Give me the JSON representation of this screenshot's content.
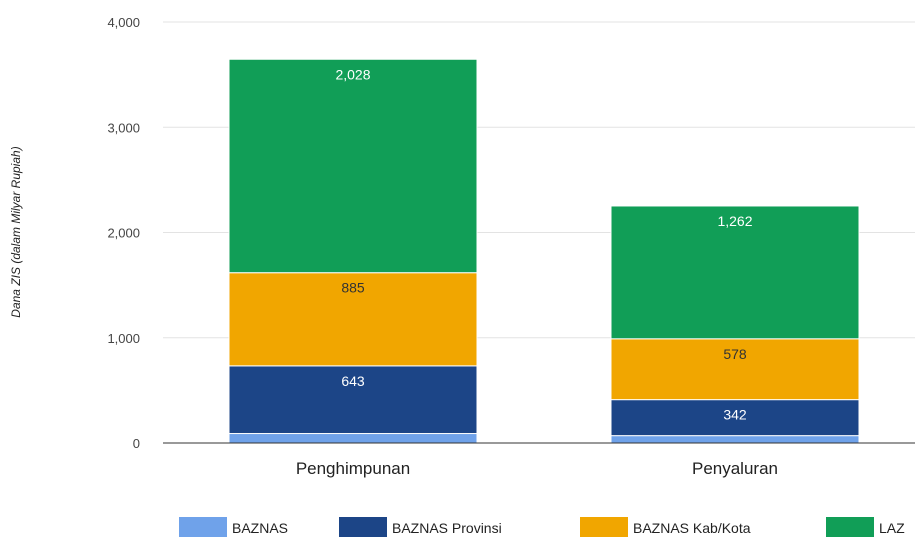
{
  "chart_data": {
    "type": "bar",
    "stacked": true,
    "ylabel": "Dana ZIS (dalam Milyar Rupiah)",
    "xlabel": "",
    "ylim": [
      0,
      4000
    ],
    "yticks": [
      0,
      1000,
      2000,
      3000,
      4000
    ],
    "ytick_labels": [
      "0",
      "1,000",
      "2,000",
      "3,000",
      "4,000"
    ],
    "grid": true,
    "legend_position": "bottom",
    "categories": [
      "Penghimpunan",
      "Penyaluran"
    ],
    "series": [
      {
        "name": "BAZNAS",
        "color": "#6fa2ea",
        "values": [
          90,
          70
        ],
        "labels": [
          "",
          ""
        ],
        "label_color": "#ffffff"
      },
      {
        "name": "BAZNAS Provinsi",
        "color": "#1c4587",
        "values": [
          643,
          342
        ],
        "labels": [
          "643",
          "342"
        ],
        "label_color": "#ffffff"
      },
      {
        "name": "BAZNAS Kab/Kota",
        "color": "#f1a600",
        "values": [
          885,
          578
        ],
        "labels": [
          "885",
          "578"
        ],
        "label_color": "#333333"
      },
      {
        "name": "LAZ",
        "color": "#119e57",
        "values": [
          2028,
          1262
        ],
        "labels": [
          "2,028",
          "1,262"
        ],
        "label_color": "#ffffff"
      }
    ]
  }
}
